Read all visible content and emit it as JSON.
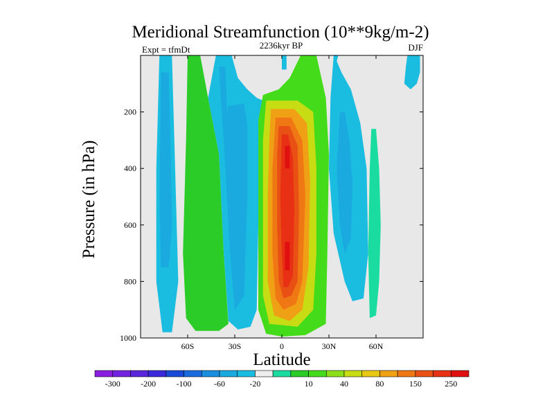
{
  "chart_data": {
    "type": "contour",
    "title": "Meridional Streamfunction (10**9kg/m-2)",
    "subtitle_left": "Expt = tfmDt",
    "subtitle_center": "2236kyr BP",
    "subtitle_right": "DJF",
    "xlabel": "Latitude",
    "ylabel": "Pressure (in hPa)",
    "xlim": [
      -90,
      90
    ],
    "ylim": [
      1000,
      0
    ],
    "x_ticks": [
      {
        "value": -60,
        "label": "60S"
      },
      {
        "value": -30,
        "label": "30S"
      },
      {
        "value": 0,
        "label": "0"
      },
      {
        "value": 30,
        "label": "30N"
      },
      {
        "value": 60,
        "label": "60N"
      }
    ],
    "y_ticks": [
      {
        "value": 200,
        "label": "200"
      },
      {
        "value": 400,
        "label": "400"
      },
      {
        "value": 600,
        "label": "600"
      },
      {
        "value": 800,
        "label": "800"
      },
      {
        "value": 1000,
        "label": "1000"
      }
    ],
    "background_color": "#e8e8e8",
    "colorbar": {
      "colors": [
        "#8a1ee0",
        "#7322e0",
        "#5a26dc",
        "#3a2adc",
        "#1a4ad8",
        "#1a6ae0",
        "#1a8ee0",
        "#1aaae0",
        "#1abce0",
        "#eeeeee",
        "#1adca0",
        "#2ccc28",
        "#44dc1a",
        "#8ce01a",
        "#c8dc14",
        "#e8c814",
        "#f0a014",
        "#f07814",
        "#e85014",
        "#e83014",
        "#e01010"
      ],
      "labels": [
        "-300",
        "-200",
        "-100",
        "-60",
        "-20",
        "10",
        "40",
        "80",
        "150",
        "250"
      ]
    },
    "regions": [
      {
        "name": "sh-polar-cell",
        "level": -20,
        "color": "#1abce0",
        "band": [
          [
            -78,
            0
          ],
          [
            -70,
            0
          ],
          [
            -68,
            400
          ],
          [
            -66,
            800
          ],
          [
            -70,
            980
          ],
          [
            -76,
            980
          ],
          [
            -80,
            800
          ],
          [
            -80,
            400
          ]
        ]
      },
      {
        "name": "sh-polar-core",
        "level": -60,
        "color": "#1aaae0",
        "band": [
          [
            -77,
            60
          ],
          [
            -72,
            60
          ],
          [
            -71,
            300
          ],
          [
            -70,
            600
          ],
          [
            -72,
            750
          ],
          [
            -77,
            750
          ],
          [
            -78,
            500
          ]
        ]
      },
      {
        "name": "ferrel-positive",
        "level": 40,
        "color": "#2ccc28",
        "band": [
          [
            -60,
            0
          ],
          [
            -52,
            0
          ],
          [
            -47,
            150
          ],
          [
            -40,
            350
          ],
          [
            -37,
            700
          ],
          [
            -34,
            950
          ],
          [
            -40,
            975
          ],
          [
            -55,
            975
          ],
          [
            -61,
            930
          ],
          [
            -63,
            700
          ],
          [
            -61,
            300
          ]
        ]
      },
      {
        "name": "sh-mid-cell",
        "level": -20,
        "color": "#1abce0",
        "band": [
          [
            -42,
            0
          ],
          [
            -32,
            0
          ],
          [
            -28,
            80
          ],
          [
            -22,
            120
          ],
          [
            -16,
            150
          ],
          [
            -12,
            160
          ],
          [
            -15,
            230
          ],
          [
            -15,
            600
          ],
          [
            -16,
            900
          ],
          [
            -20,
            960
          ],
          [
            -28,
            970
          ],
          [
            -34,
            940
          ],
          [
            -37,
            700
          ],
          [
            -40,
            350
          ],
          [
            -47,
            150
          ]
        ]
      },
      {
        "name": "sh-mid-core",
        "level": -60,
        "color": "#1aaae0",
        "band": [
          [
            -40,
            40
          ],
          [
            -36,
            40
          ],
          [
            -35,
            200
          ],
          [
            -34,
            180
          ],
          [
            -24,
            170
          ],
          [
            -22,
            250
          ],
          [
            -22,
            500
          ],
          [
            -24,
            850
          ],
          [
            -30,
            900
          ],
          [
            -33,
            700
          ],
          [
            -36,
            400
          ]
        ]
      },
      {
        "name": "hadley-10",
        "level": 40,
        "color": "#44dc1a",
        "band": [
          [
            12,
            0
          ],
          [
            22,
            0
          ],
          [
            28,
            150
          ],
          [
            30,
            350
          ],
          [
            29,
            700
          ],
          [
            28,
            950
          ],
          [
            15,
            990
          ],
          [
            0,
            995
          ],
          [
            -10,
            985
          ],
          [
            -15,
            900
          ],
          [
            -15,
            600
          ],
          [
            -15,
            230
          ],
          [
            -12,
            140
          ],
          [
            -2,
            120
          ],
          [
            5,
            80
          ]
        ]
      },
      {
        "name": "hadley-80",
        "level": 80,
        "color": "#c8dc14",
        "band": [
          [
            -10,
            160
          ],
          [
            10,
            160
          ],
          [
            20,
            200
          ],
          [
            22,
            400
          ],
          [
            22,
            700
          ],
          [
            20,
            900
          ],
          [
            10,
            960
          ],
          [
            -8,
            950
          ],
          [
            -12,
            850
          ],
          [
            -12,
            600
          ],
          [
            -12,
            300
          ]
        ]
      },
      {
        "name": "hadley-150",
        "level": 150,
        "color": "#f0a014",
        "band": [
          [
            -7,
            190
          ],
          [
            8,
            190
          ],
          [
            16,
            240
          ],
          [
            18,
            450
          ],
          [
            17,
            750
          ],
          [
            13,
            900
          ],
          [
            5,
            940
          ],
          [
            -5,
            920
          ],
          [
            -9,
            800
          ],
          [
            -9,
            500
          ],
          [
            -8,
            300
          ]
        ]
      },
      {
        "name": "hadley-200",
        "level": 200,
        "color": "#f07814",
        "band": [
          [
            -4,
            220
          ],
          [
            6,
            220
          ],
          [
            13,
            300
          ],
          [
            15,
            500
          ],
          [
            13,
            800
          ],
          [
            9,
            880
          ],
          [
            1,
            900
          ],
          [
            -4,
            860
          ],
          [
            -6,
            700
          ],
          [
            -6,
            400
          ]
        ]
      },
      {
        "name": "hadley-250",
        "level": 250,
        "color": "#e85014",
        "band": [
          [
            -2,
            250
          ],
          [
            5,
            250
          ],
          [
            10,
            320
          ],
          [
            11,
            550
          ],
          [
            10,
            800
          ],
          [
            6,
            850
          ],
          [
            1,
            860
          ],
          [
            -2,
            800
          ],
          [
            -3,
            600
          ],
          [
            -3,
            350
          ]
        ]
      },
      {
        "name": "hadley-300",
        "level": 300,
        "color": "#e83014",
        "band": [
          [
            0,
            280
          ],
          [
            4,
            280
          ],
          [
            7,
            360
          ],
          [
            8,
            550
          ],
          [
            7,
            780
          ],
          [
            4,
            820
          ],
          [
            1,
            820
          ],
          [
            0,
            700
          ],
          [
            -1,
            500
          ]
        ]
      },
      {
        "name": "hadley-core-a",
        "level": 350,
        "color": "#e01010",
        "band": [
          [
            2,
            320
          ],
          [
            5,
            320
          ],
          [
            5,
            400
          ],
          [
            2,
            400
          ]
        ]
      },
      {
        "name": "hadley-core-b",
        "level": 350,
        "color": "#e01010",
        "band": [
          [
            2,
            660
          ],
          [
            5,
            660
          ],
          [
            5,
            760
          ],
          [
            2,
            760
          ]
        ]
      },
      {
        "name": "nh-ferrel-cell",
        "level": -20,
        "color": "#1abce0",
        "band": [
          [
            33,
            0
          ],
          [
            36,
            0
          ],
          [
            35,
            20
          ],
          [
            38,
            60
          ],
          [
            44,
            120
          ],
          [
            50,
            240
          ],
          [
            54,
            400
          ],
          [
            55,
            700
          ],
          [
            52,
            860
          ],
          [
            45,
            870
          ],
          [
            40,
            800
          ],
          [
            33,
            630
          ],
          [
            30,
            400
          ],
          [
            31,
            150
          ]
        ]
      },
      {
        "name": "nh-ferrel-core",
        "level": -60,
        "color": "#1aaae0",
        "band": [
          [
            37,
            200
          ],
          [
            40,
            200
          ],
          [
            43,
            300
          ],
          [
            45,
            450
          ],
          [
            44,
            650
          ],
          [
            40,
            700
          ],
          [
            37,
            600
          ],
          [
            35,
            400
          ]
        ]
      },
      {
        "name": "tropics-top-cell",
        "level": -20,
        "color": "#1abce0",
        "band": [
          [
            0,
            0
          ],
          [
            3,
            0
          ],
          [
            3,
            50
          ],
          [
            0,
            50
          ]
        ]
      },
      {
        "name": "nh-polar-cell",
        "level": 10,
        "color": "#1adca0",
        "band": [
          [
            57,
            260
          ],
          [
            60,
            260
          ],
          [
            62,
            400
          ],
          [
            63,
            600
          ],
          [
            62,
            800
          ],
          [
            60,
            920
          ],
          [
            56,
            930
          ],
          [
            55,
            700
          ],
          [
            56,
            400
          ]
        ]
      },
      {
        "name": "nh-polar-top-cell",
        "level": -20,
        "color": "#1abce0",
        "band": [
          [
            80,
            0
          ],
          [
            88,
            0
          ],
          [
            88,
            60
          ],
          [
            86,
            100
          ],
          [
            82,
            120
          ],
          [
            78,
            100
          ],
          [
            79,
            40
          ]
        ]
      }
    ]
  }
}
